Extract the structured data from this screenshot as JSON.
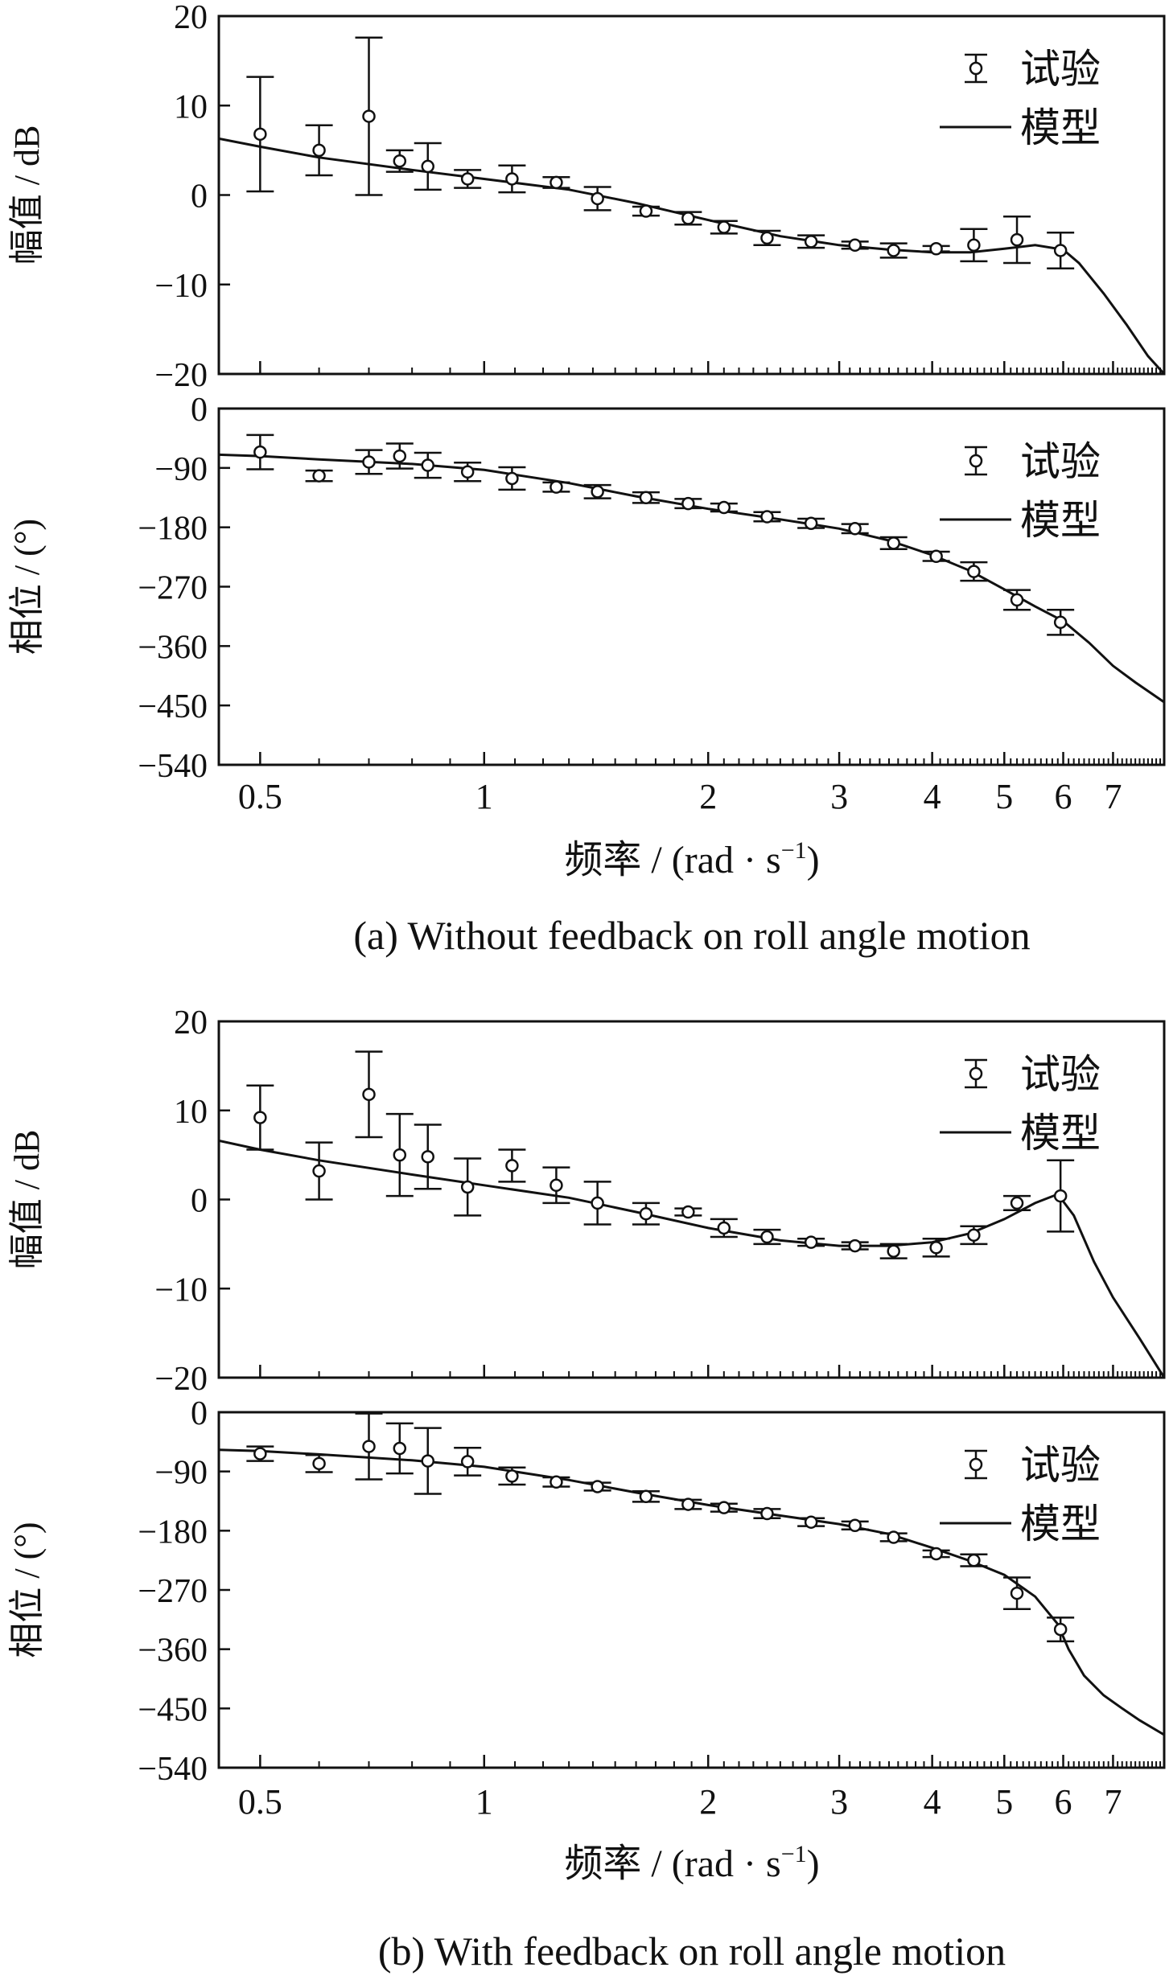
{
  "figure": {
    "x_axis": {
      "label_prefix": "频率 / (rad · s",
      "label_sup": "−1",
      "label_suffix": ")",
      "scale": "log",
      "ticks": [
        0.5,
        1,
        2,
        3,
        4,
        5,
        6,
        7
      ],
      "tick_labels": [
        "0.5",
        "1",
        "2",
        "3",
        "4",
        "5",
        "6",
        "7"
      ]
    },
    "legend": {
      "test": "试验",
      "model": "模型",
      "placement": "top-right"
    },
    "captions": {
      "a": "(a) Without feedback on roll angle motion",
      "b": "(b) With feedback on roll angle motion"
    },
    "colors": {
      "line": "#111111",
      "background": "#ffffff"
    }
  },
  "chart_data": [
    {
      "id": "a-magnitude",
      "type": "line",
      "ylabel": "幅值 / dB",
      "ylim": [
        -20,
        20
      ],
      "yticks": [
        -20,
        -10,
        0,
        10,
        20
      ],
      "ytick_labels": [
        "−20",
        "−10",
        "0",
        "10",
        "20"
      ],
      "xlim": [
        0.44,
        8.2
      ],
      "series": [
        {
          "name": "试验",
          "kind": "errorbar",
          "x": [
            0.5,
            0.6,
            0.7,
            0.77,
            0.84,
            0.95,
            1.09,
            1.25,
            1.42,
            1.65,
            1.88,
            2.1,
            2.4,
            2.75,
            3.15,
            3.55,
            4.05,
            4.55,
            5.2,
            5.95
          ],
          "y": [
            6.8,
            5.0,
            8.8,
            3.8,
            3.2,
            1.8,
            1.8,
            1.4,
            -0.4,
            -1.8,
            -2.6,
            -3.6,
            -4.8,
            -5.2,
            -5.6,
            -6.2,
            -6.0,
            -5.6,
            -5.0,
            -6.2
          ],
          "err": [
            6.4,
            2.8,
            8.8,
            1.2,
            2.6,
            1.0,
            1.5,
            0.6,
            1.3,
            0.5,
            0.7,
            0.7,
            0.8,
            0.7,
            0.4,
            0.8,
            0.3,
            1.8,
            2.6,
            2.0
          ]
        },
        {
          "name": "模型",
          "kind": "line",
          "x": [
            0.44,
            0.5,
            0.6,
            0.8,
            1.0,
            1.3,
            1.6,
            2.0,
            2.5,
            3.0,
            3.5,
            4.0,
            4.5,
            5.0,
            5.5,
            6.0,
            6.3,
            6.8,
            7.3,
            7.8,
            8.2
          ],
          "y": [
            6.3,
            5.4,
            4.2,
            2.8,
            1.8,
            0.6,
            -0.9,
            -2.8,
            -4.6,
            -5.6,
            -6.1,
            -6.4,
            -6.4,
            -6.0,
            -5.6,
            -6.1,
            -7.6,
            -11.0,
            -14.5,
            -18.0,
            -20.0
          ]
        }
      ]
    },
    {
      "id": "a-phase",
      "type": "line",
      "ylabel": "相位 / (°)",
      "ylim": [
        -540,
        0
      ],
      "yticks": [
        -540,
        -450,
        -360,
        -270,
        -180,
        -90,
        0
      ],
      "ytick_labels": [
        "−540",
        "−450",
        "−360",
        "−270",
        "−180",
        "−90",
        "0"
      ],
      "xlim": [
        0.44,
        8.2
      ],
      "series": [
        {
          "name": "试验",
          "kind": "errorbar",
          "x": [
            0.5,
            0.6,
            0.7,
            0.77,
            0.84,
            0.95,
            1.09,
            1.25,
            1.42,
            1.65,
            1.88,
            2.1,
            2.4,
            2.75,
            3.15,
            3.55,
            4.05,
            4.55,
            5.2,
            5.95
          ],
          "y": [
            -66,
            -102,
            -81,
            -72,
            -86,
            -96,
            -106,
            -119,
            -126,
            -135,
            -144,
            -150,
            -164,
            -174,
            -182,
            -204,
            -224,
            -247,
            -290,
            -324
          ],
          "err": [
            26,
            8,
            18,
            19,
            19,
            14,
            17,
            7,
            10,
            8,
            7,
            6,
            7,
            7,
            7,
            9,
            7,
            14,
            15,
            19
          ]
        },
        {
          "name": "模型",
          "kind": "line",
          "x": [
            0.44,
            0.5,
            0.6,
            0.8,
            1.0,
            1.3,
            1.6,
            2.0,
            2.5,
            3.0,
            3.5,
            4.0,
            4.5,
            5.0,
            5.5,
            6.0,
            6.5,
            7.0,
            7.5,
            8.2
          ],
          "y": [
            -70,
            -72,
            -77,
            -84,
            -93,
            -113,
            -133,
            -152,
            -168,
            -182,
            -200,
            -222,
            -246,
            -274,
            -300,
            -322,
            -355,
            -390,
            -415,
            -445
          ]
        }
      ]
    },
    {
      "id": "b-magnitude",
      "type": "line",
      "ylabel": "幅值 / dB",
      "ylim": [
        -20,
        20
      ],
      "yticks": [
        -20,
        -10,
        0,
        10,
        20
      ],
      "ytick_labels": [
        "−20",
        "−10",
        "0",
        "10",
        "20"
      ],
      "xlim": [
        0.44,
        8.2
      ],
      "series": [
        {
          "name": "试验",
          "kind": "errorbar",
          "x": [
            0.5,
            0.6,
            0.7,
            0.77,
            0.84,
            0.95,
            1.09,
            1.25,
            1.42,
            1.65,
            1.88,
            2.1,
            2.4,
            2.75,
            3.15,
            3.55,
            4.05,
            4.55,
            5.2,
            5.95
          ],
          "y": [
            9.2,
            3.2,
            11.8,
            5.0,
            4.8,
            1.4,
            3.8,
            1.6,
            -0.4,
            -1.6,
            -1.4,
            -3.2,
            -4.2,
            -4.8,
            -5.2,
            -5.8,
            -5.4,
            -4.0,
            -0.4,
            0.4
          ],
          "err": [
            3.6,
            3.2,
            4.8,
            4.6,
            3.6,
            3.2,
            1.8,
            2.0,
            2.4,
            1.2,
            0.4,
            1.0,
            0.8,
            0.4,
            0.4,
            0.8,
            1.0,
            1.0,
            0.8,
            4.0
          ]
        },
        {
          "name": "模型",
          "kind": "line",
          "x": [
            0.44,
            0.5,
            0.6,
            0.8,
            1.0,
            1.3,
            1.6,
            2.0,
            2.5,
            3.0,
            3.5,
            4.0,
            4.5,
            5.0,
            5.5,
            5.9,
            6.2,
            6.6,
            7.0,
            7.6,
            8.2
          ],
          "y": [
            6.6,
            5.6,
            4.4,
            2.8,
            1.6,
            0.2,
            -1.4,
            -3.2,
            -4.6,
            -5.2,
            -5.2,
            -4.8,
            -3.8,
            -2.2,
            -0.4,
            0.6,
            -1.8,
            -7.0,
            -11.0,
            -15.6,
            -20.0
          ]
        }
      ]
    },
    {
      "id": "b-phase",
      "type": "line",
      "ylabel": "相位 / (°)",
      "ylim": [
        -540,
        0
      ],
      "yticks": [
        -540,
        -450,
        -360,
        -270,
        -180,
        -90,
        0
      ],
      "ytick_labels": [
        "−540",
        "−450",
        "−360",
        "−270",
        "−180",
        "−90",
        "0"
      ],
      "xlim": [
        0.44,
        8.2
      ],
      "series": [
        {
          "name": "试验",
          "kind": "errorbar",
          "x": [
            0.5,
            0.6,
            0.7,
            0.77,
            0.84,
            0.95,
            1.09,
            1.25,
            1.42,
            1.65,
            1.88,
            2.1,
            2.4,
            2.75,
            3.15,
            3.55,
            4.05,
            4.55,
            5.2,
            5.95
          ],
          "y": [
            -63,
            -78,
            -52,
            -55,
            -74,
            -75,
            -97,
            -106,
            -113,
            -128,
            -140,
            -145,
            -154,
            -167,
            -172,
            -190,
            -215,
            -225,
            -275,
            -330
          ],
          "err": [
            11,
            13,
            50,
            38,
            50,
            21,
            13,
            7,
            6,
            8,
            7,
            6,
            7,
            6,
            6,
            6,
            5,
            9,
            24,
            18
          ]
        },
        {
          "name": "模型",
          "kind": "line",
          "x": [
            0.44,
            0.5,
            0.6,
            0.8,
            1.0,
            1.3,
            1.6,
            2.0,
            2.5,
            3.0,
            3.5,
            4.0,
            4.5,
            5.0,
            5.5,
            5.9,
            6.1,
            6.4,
            6.8,
            7.2,
            7.6,
            8.2
          ],
          "y": [
            -57,
            -59,
            -64,
            -73,
            -83,
            -103,
            -122,
            -141,
            -157,
            -170,
            -185,
            -206,
            -226,
            -247,
            -280,
            -322,
            -360,
            -400,
            -430,
            -450,
            -468,
            -490
          ]
        }
      ]
    }
  ]
}
